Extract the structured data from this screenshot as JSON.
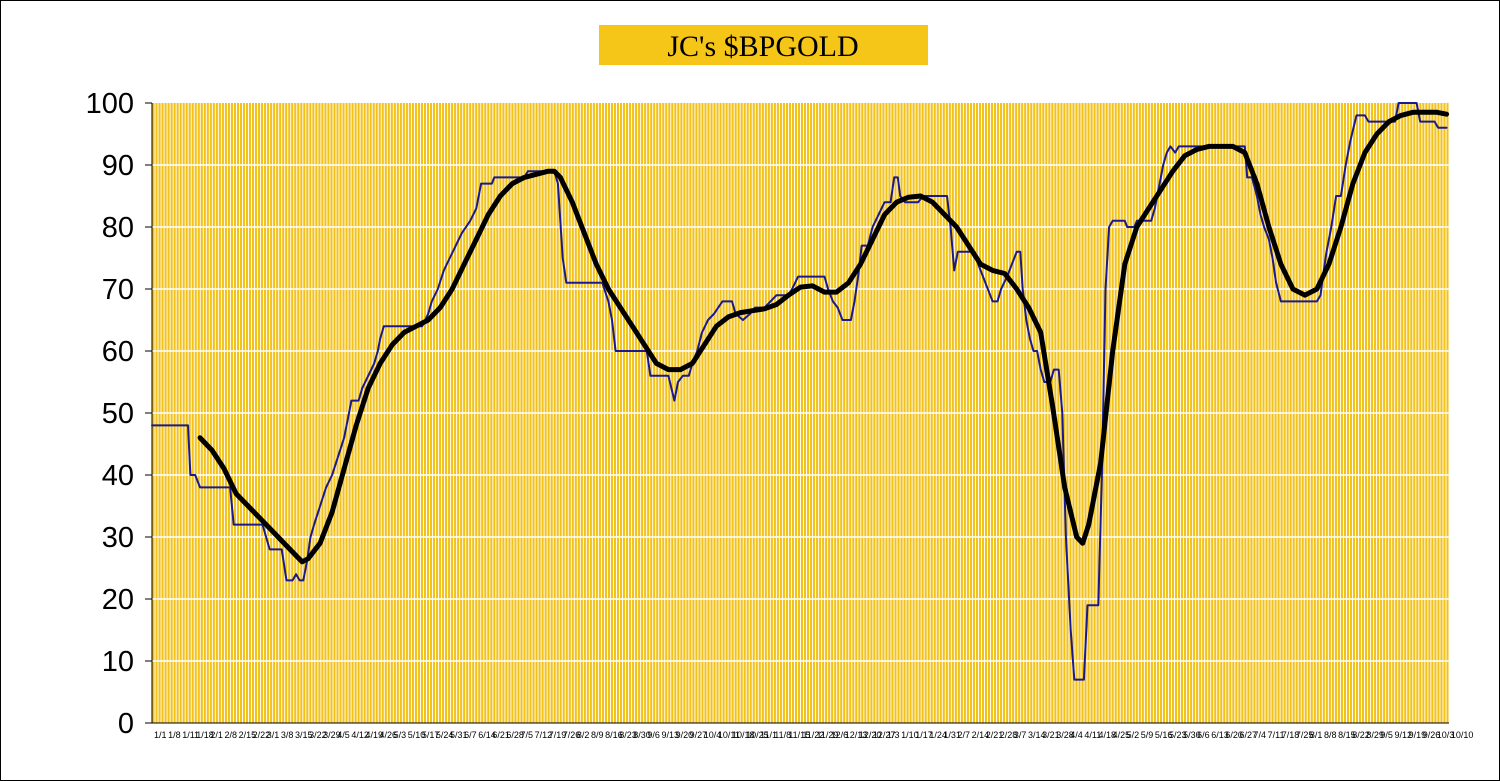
{
  "chart_data": {
    "type": "line",
    "title": "JC's $BPGOLD",
    "xlabel": "",
    "ylabel": "",
    "ylim": [
      0,
      100
    ],
    "yticks": [
      0,
      10,
      20,
      30,
      40,
      50,
      60,
      70,
      80,
      90,
      100
    ],
    "x_tick_labels": [
      "1/1",
      "1/8",
      "1/11",
      "1/18",
      "2/1",
      "2/8",
      "2/15",
      "2/22",
      "3/1",
      "3/8",
      "3/15",
      "3/22",
      "3/29",
      "4/5",
      "4/12",
      "4/19",
      "4/26",
      "5/3",
      "5/10",
      "5/17",
      "5/24",
      "5/31",
      "6/7",
      "6/14",
      "6/21",
      "6/28",
      "7/5",
      "7/12",
      "7/19",
      "7/26",
      "8/2",
      "8/9",
      "8/16",
      "8/23",
      "8/30",
      "9/6",
      "9/13",
      "9/20",
      "9/27",
      "10/4",
      "10/11",
      "10/18",
      "10/25",
      "11/1",
      "11/8",
      "11/15",
      "11/22",
      "11/29",
      "12/6",
      "12/13",
      "12/20",
      "12/27",
      "1/3",
      "1/10",
      "1/17",
      "1/24",
      "1/31",
      "2/7",
      "2/14",
      "2/21",
      "2/28",
      "3/7",
      "3/14",
      "3/21",
      "3/28",
      "4/4",
      "4/11",
      "4/18",
      "4/25",
      "5/2",
      "5/9",
      "5/16",
      "5/23",
      "5/30",
      "6/6",
      "6/13",
      "6/20",
      "6/27",
      "7/4",
      "7/11",
      "7/18",
      "7/25",
      "8/1",
      "8/8",
      "8/15",
      "8/22",
      "8/29",
      "9/5",
      "9/12",
      "9/19",
      "9/26",
      "10/3",
      "10/10"
    ],
    "series": [
      {
        "name": "",
        "style": "thin",
        "color": "#1a1a8c",
        "points": [
          [
            0,
            48
          ],
          [
            3,
            48
          ],
          [
            3.2,
            40
          ],
          [
            3.6,
            40
          ],
          [
            4,
            38
          ],
          [
            6.5,
            38
          ],
          [
            6.8,
            32
          ],
          [
            9.2,
            32
          ],
          [
            9.5,
            30
          ],
          [
            9.8,
            28
          ],
          [
            10.8,
            28
          ],
          [
            11.2,
            23
          ],
          [
            11.7,
            23
          ],
          [
            12,
            24
          ],
          [
            12.3,
            23
          ],
          [
            12.6,
            23
          ],
          [
            12.9,
            26
          ],
          [
            13.2,
            30
          ],
          [
            13.5,
            32
          ],
          [
            14,
            35
          ],
          [
            14.5,
            38
          ],
          [
            15,
            40
          ],
          [
            15.5,
            43
          ],
          [
            16,
            46
          ],
          [
            16.3,
            49
          ],
          [
            16.6,
            52
          ],
          [
            17.2,
            52
          ],
          [
            17.5,
            54
          ],
          [
            18,
            56
          ],
          [
            18.5,
            58
          ],
          [
            18.8,
            60
          ],
          [
            19,
            62
          ],
          [
            19.3,
            64
          ],
          [
            22.5,
            64
          ],
          [
            23,
            66
          ],
          [
            23.3,
            68
          ],
          [
            23.8,
            70
          ],
          [
            24.3,
            73
          ],
          [
            24.8,
            75
          ],
          [
            25.3,
            77
          ],
          [
            25.8,
            79
          ],
          [
            26.5,
            81
          ],
          [
            27,
            83
          ],
          [
            27.4,
            87
          ],
          [
            28.3,
            87
          ],
          [
            28.5,
            88
          ],
          [
            31,
            88
          ],
          [
            31.3,
            89
          ],
          [
            33.5,
            89
          ],
          [
            33.8,
            87
          ],
          [
            34.2,
            75
          ],
          [
            34.5,
            71
          ],
          [
            37.5,
            71
          ],
          [
            38,
            68
          ],
          [
            38.3,
            65
          ],
          [
            38.6,
            60
          ],
          [
            40,
            60
          ],
          [
            40.5,
            60
          ],
          [
            41.2,
            60
          ],
          [
            41.5,
            56
          ],
          [
            43,
            56
          ],
          [
            43.5,
            52
          ],
          [
            43.8,
            55
          ],
          [
            44.2,
            56
          ],
          [
            44.7,
            56
          ],
          [
            45,
            58
          ],
          [
            45.4,
            60
          ],
          [
            45.8,
            63
          ],
          [
            46.3,
            65
          ],
          [
            46.8,
            66
          ],
          [
            47.5,
            68
          ],
          [
            48.3,
            68
          ],
          [
            48.6,
            66
          ],
          [
            49.2,
            65
          ],
          [
            49.8,
            66
          ],
          [
            50.2,
            67
          ],
          [
            51,
            67
          ],
          [
            51.5,
            68
          ],
          [
            52,
            69
          ],
          [
            53,
            69
          ],
          [
            53.3,
            70
          ],
          [
            53.8,
            72
          ],
          [
            56,
            72
          ],
          [
            56.3,
            70
          ],
          [
            56.7,
            68
          ],
          [
            57.1,
            67
          ],
          [
            57.5,
            65
          ],
          [
            58.2,
            65
          ],
          [
            58.5,
            68
          ],
          [
            58.8,
            72
          ],
          [
            59.1,
            77
          ],
          [
            59.6,
            77
          ],
          [
            60,
            80
          ],
          [
            60.5,
            82
          ],
          [
            61,
            84
          ],
          [
            61.5,
            84
          ],
          [
            61.8,
            88
          ],
          [
            62.1,
            88
          ],
          [
            62.3,
            85
          ],
          [
            62.7,
            84
          ],
          [
            63.2,
            84
          ],
          [
            63.8,
            84
          ],
          [
            64.2,
            85
          ],
          [
            66.2,
            85
          ],
          [
            66.5,
            80
          ],
          [
            66.8,
            73
          ],
          [
            67.1,
            76
          ],
          [
            68.5,
            76
          ],
          [
            68.8,
            74
          ],
          [
            69.2,
            72
          ],
          [
            69.6,
            70
          ],
          [
            70,
            68
          ],
          [
            70.4,
            68
          ],
          [
            70.7,
            70
          ],
          [
            71.2,
            72
          ],
          [
            71.6,
            74
          ],
          [
            72,
            76
          ],
          [
            72.3,
            76
          ],
          [
            72.5,
            70
          ],
          [
            72.8,
            65
          ],
          [
            73.1,
            62
          ],
          [
            73.4,
            60
          ],
          [
            73.7,
            60
          ],
          [
            74,
            57
          ],
          [
            74.3,
            55
          ],
          [
            74.8,
            55
          ],
          [
            75.1,
            57
          ],
          [
            75.5,
            57
          ],
          [
            75.8,
            50
          ],
          [
            76.1,
            30
          ],
          [
            76.5,
            15
          ],
          [
            76.8,
            7
          ],
          [
            77.6,
            7
          ],
          [
            77.9,
            19
          ],
          [
            78.8,
            19
          ],
          [
            79.1,
            40
          ],
          [
            79.4,
            70
          ],
          [
            79.7,
            80
          ],
          [
            80,
            81
          ],
          [
            81,
            81
          ],
          [
            81.2,
            80
          ],
          [
            81.8,
            80
          ],
          [
            82,
            81
          ],
          [
            83.2,
            81
          ],
          [
            83.5,
            83
          ],
          [
            83.8,
            86
          ],
          [
            84.2,
            90
          ],
          [
            84.5,
            92
          ],
          [
            84.8,
            93
          ],
          [
            85.2,
            92
          ],
          [
            85.5,
            93
          ],
          [
            91,
            93
          ],
          [
            91.2,
            88
          ],
          [
            91.6,
            88
          ],
          [
            92,
            85
          ],
          [
            92.3,
            82
          ],
          [
            92.6,
            80
          ],
          [
            93,
            78
          ],
          [
            93.3,
            75
          ],
          [
            93.6,
            71
          ],
          [
            94,
            68
          ],
          [
            97,
            68
          ],
          [
            97.3,
            69
          ],
          [
            97.5,
            72
          ],
          [
            97.8,
            76
          ],
          [
            98.2,
            80
          ],
          [
            98.6,
            85
          ],
          [
            99,
            85
          ],
          [
            99.4,
            90
          ],
          [
            99.8,
            94
          ],
          [
            100.3,
            98
          ],
          [
            101,
            98
          ],
          [
            101.3,
            97
          ],
          [
            103.5,
            97
          ],
          [
            103.8,
            100
          ],
          [
            105.3,
            100
          ],
          [
            105.6,
            97
          ],
          [
            106.8,
            97
          ],
          [
            107.1,
            96
          ],
          [
            107.8,
            96
          ]
        ]
      },
      {
        "name": "",
        "style": "thick",
        "color": "#000000",
        "points": [
          [
            4,
            46
          ],
          [
            5,
            44
          ],
          [
            6,
            41
          ],
          [
            7,
            37
          ],
          [
            8,
            35
          ],
          [
            9,
            33
          ],
          [
            10,
            31
          ],
          [
            11,
            29
          ],
          [
            12,
            27
          ],
          [
            12.5,
            26
          ],
          [
            13,
            26.5
          ],
          [
            14,
            29
          ],
          [
            15,
            34
          ],
          [
            16,
            41
          ],
          [
            17,
            48
          ],
          [
            18,
            54
          ],
          [
            19,
            58
          ],
          [
            20,
            61
          ],
          [
            21,
            63
          ],
          [
            22,
            64
          ],
          [
            23,
            65
          ],
          [
            24,
            67
          ],
          [
            25,
            70
          ],
          [
            26,
            74
          ],
          [
            27,
            78
          ],
          [
            28,
            82
          ],
          [
            29,
            85
          ],
          [
            30,
            87
          ],
          [
            31,
            88
          ],
          [
            32,
            88.5
          ],
          [
            33,
            89
          ],
          [
            33.5,
            89
          ],
          [
            34,
            88
          ],
          [
            35,
            84
          ],
          [
            36,
            79
          ],
          [
            37,
            74
          ],
          [
            38,
            70
          ],
          [
            39,
            67
          ],
          [
            40,
            64
          ],
          [
            41,
            61
          ],
          [
            42,
            58
          ],
          [
            43,
            57
          ],
          [
            44,
            57
          ],
          [
            45,
            58
          ],
          [
            46,
            61
          ],
          [
            47,
            64
          ],
          [
            48,
            65.5
          ],
          [
            49,
            66.2
          ],
          [
            50,
            66.5
          ],
          [
            51,
            66.8
          ],
          [
            52,
            67.5
          ],
          [
            53,
            69
          ],
          [
            54,
            70.3
          ],
          [
            55,
            70.5
          ],
          [
            56,
            69.5
          ],
          [
            57,
            69.5
          ],
          [
            58,
            71
          ],
          [
            59,
            74
          ],
          [
            60,
            78
          ],
          [
            61,
            82
          ],
          [
            62,
            84
          ],
          [
            63,
            84.8
          ],
          [
            64,
            85
          ],
          [
            65,
            84
          ],
          [
            66,
            82
          ],
          [
            67,
            80
          ],
          [
            68,
            77
          ],
          [
            69,
            74
          ],
          [
            70,
            73
          ],
          [
            71,
            72.5
          ],
          [
            72,
            70
          ],
          [
            73,
            67
          ],
          [
            74,
            63
          ],
          [
            75,
            51
          ],
          [
            76,
            38
          ],
          [
            77,
            30
          ],
          [
            77.5,
            29
          ],
          [
            78,
            32
          ],
          [
            79,
            42
          ],
          [
            80,
            60
          ],
          [
            81,
            74
          ],
          [
            82,
            80
          ],
          [
            83,
            83
          ],
          [
            84,
            86
          ],
          [
            85,
            89
          ],
          [
            86,
            91.5
          ],
          [
            87,
            92.5
          ],
          [
            88,
            93
          ],
          [
            89,
            93
          ],
          [
            90,
            93
          ],
          [
            91,
            92
          ],
          [
            92,
            87
          ],
          [
            93,
            80
          ],
          [
            94,
            74
          ],
          [
            95,
            70
          ],
          [
            96,
            69
          ],
          [
            97,
            70
          ],
          [
            98,
            74
          ],
          [
            99,
            80
          ],
          [
            100,
            87
          ],
          [
            101,
            92
          ],
          [
            102,
            95
          ],
          [
            103,
            97
          ],
          [
            104,
            98
          ],
          [
            105,
            98.5
          ],
          [
            106,
            98.5
          ],
          [
            107,
            98.5
          ],
          [
            107.8,
            98.2
          ]
        ]
      }
    ],
    "x_range": [
      0,
      108
    ],
    "grid": true,
    "legend": "none",
    "colors": {
      "plot_background": "#ffffff",
      "plot_stripes": "#f2c11a",
      "title_background": "#f5c518",
      "horizontal_grid": "#ffffff"
    }
  }
}
